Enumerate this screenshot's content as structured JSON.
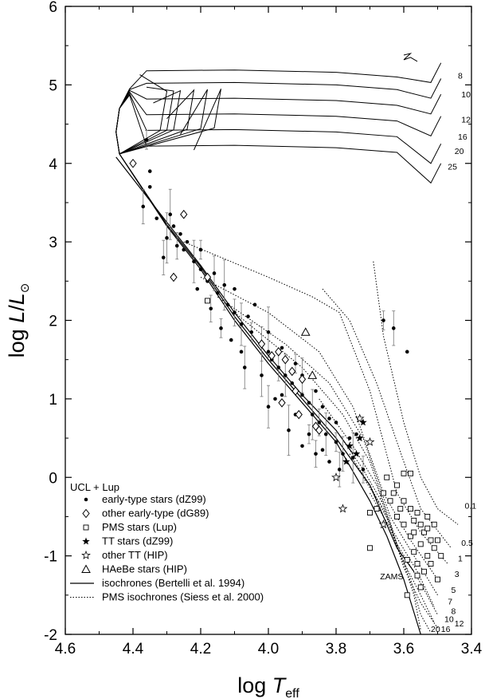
{
  "chart_data": {
    "type": "scatter",
    "x_axis": {
      "title_main": "log ",
      "title_italic": "T",
      "title_sub": "eff",
      "range": [
        4.6,
        3.4
      ],
      "reversed": true,
      "ticks": [
        "4.6",
        "4.4",
        "4.2",
        "4.0",
        "3.8",
        "3.6",
        "3.4"
      ],
      "tick_values": [
        4.6,
        4.4,
        4.2,
        4.0,
        3.8,
        3.6,
        3.4
      ]
    },
    "y_axis": {
      "title_main": "log ",
      "title_italic": "L",
      "title_rest": "/",
      "title_italic2": "L",
      "title_symbol": "⊙",
      "range": [
        -2,
        6
      ],
      "ticks": [
        "-2",
        "-1",
        "0",
        "1",
        "2",
        "3",
        "4",
        "5",
        "6"
      ],
      "tick_values": [
        -2,
        -1,
        0,
        1,
        2,
        3,
        4,
        5,
        6
      ]
    },
    "grid": false,
    "legend": {
      "position": "bottom-left",
      "title": "UCL + Lup",
      "entries": [
        {
          "label": "early-type stars (dZ99)",
          "marker": "filled-circle"
        },
        {
          "label": "other early-type (dG89)",
          "marker": "open-diamond"
        },
        {
          "label": "PMS stars (Lup)",
          "marker": "open-square"
        },
        {
          "label": "TT stars (dZ99)",
          "marker": "filled-star"
        },
        {
          "label": "other TT (HIP)",
          "marker": "open-star"
        },
        {
          "label": "HAeBe stars (HIP)",
          "marker": "open-triangle"
        },
        {
          "label": "isochrones (Bertelli et al. 1994)",
          "marker": "solid-line"
        },
        {
          "label": "PMS isochrones (Siess et al. 2000)",
          "marker": "dotted-line"
        }
      ]
    },
    "annotations": [
      "ZAMS"
    ],
    "post_ms_track_labels": [
      {
        "label": "8",
        "x": 3.44,
        "y": 5.08
      },
      {
        "label": "10",
        "x": 3.43,
        "y": 4.84
      },
      {
        "label": "12",
        "x": 3.43,
        "y": 4.52
      },
      {
        "label": "16",
        "x": 3.44,
        "y": 4.3
      },
      {
        "label": "20",
        "x": 3.45,
        "y": 4.12
      },
      {
        "label": "25",
        "x": 3.47,
        "y": 3.92
      }
    ],
    "pms_isochrone_labels": [
      {
        "label": "0.1",
        "x": 3.42,
        "y": -0.4
      },
      {
        "label": "0.5",
        "x": 3.43,
        "y": -0.87
      },
      {
        "label": "1",
        "x": 3.44,
        "y": -1.07
      },
      {
        "label": "3",
        "x": 3.45,
        "y": -1.27
      },
      {
        "label": "5",
        "x": 3.46,
        "y": -1.47
      },
      {
        "label": "7",
        "x": 3.47,
        "y": -1.62
      },
      {
        "label": "8",
        "x": 3.46,
        "y": -1.74
      },
      {
        "label": "10",
        "x": 3.48,
        "y": -1.84
      },
      {
        "label": "12",
        "x": 3.45,
        "y": -1.9
      },
      {
        "label": "16",
        "x": 3.49,
        "y": -1.97
      },
      {
        "label": "20",
        "x": 3.52,
        "y": -1.97
      }
    ],
    "zams_label": {
      "label": "ZAMS",
      "x": 3.67,
      "y": -1.3
    },
    "isochrones_solid": [
      [
        [
          4.44,
          4.12
        ],
        [
          4.3,
          3.2
        ],
        [
          4.2,
          2.65
        ],
        [
          4.1,
          2.0
        ],
        [
          4.0,
          1.45
        ],
        [
          3.9,
          0.95
        ],
        [
          3.8,
          0.45
        ],
        [
          3.7,
          -0.3
        ],
        [
          3.65,
          -0.75
        ],
        [
          3.6,
          -1.3
        ],
        [
          3.55,
          -2.0
        ]
      ],
      [
        [
          4.44,
          4.12
        ],
        [
          4.3,
          3.22
        ],
        [
          4.2,
          2.68
        ],
        [
          4.1,
          2.05
        ],
        [
          4.0,
          1.5
        ],
        [
          3.9,
          1.0
        ],
        [
          3.8,
          0.5
        ],
        [
          3.7,
          -0.1
        ],
        [
          3.62,
          -0.9
        ],
        [
          3.57,
          -1.2
        ]
      ],
      [
        [
          4.45,
          4.08
        ],
        [
          4.3,
          3.25
        ],
        [
          4.2,
          2.7
        ],
        [
          4.1,
          2.1
        ],
        [
          4.0,
          1.55
        ],
        [
          3.9,
          1.05
        ],
        [
          3.8,
          0.6
        ],
        [
          3.75,
          0.3
        ]
      ]
    ],
    "post_ms_tracks": [
      {
        "mass": "8",
        "y_blue": 5.18,
        "y_red": 5.28,
        "x_hook": 4.3
      },
      {
        "mass": "10",
        "y_blue": 5.02,
        "y_red": 5.08,
        "x_hook": 4.28
      },
      {
        "mass": "12",
        "y_blue": 4.82,
        "y_red": 4.88,
        "x_hook": 4.26
      },
      {
        "mass": "16",
        "y_blue": 4.62,
        "y_red": 4.6,
        "x_hook": 4.22
      },
      {
        "mass": "20",
        "y_blue": 4.42,
        "y_red": 4.25,
        "x_hook": 4.18
      },
      {
        "mass": "25",
        "y_blue": 4.22,
        "y_red": 4.0,
        "x_hook": 4.14
      }
    ],
    "pms_isochrones_dotted": [
      {
        "age": "0.1",
        "points": [
          [
            3.69,
            2.75
          ],
          [
            3.66,
            1.8
          ],
          [
            3.6,
            0.7
          ],
          [
            3.55,
            0.0
          ],
          [
            3.5,
            -0.4
          ],
          [
            3.44,
            -0.6
          ]
        ]
      },
      {
        "age": "0.5",
        "points": [
          [
            3.84,
            2.4
          ],
          [
            3.76,
            2.0
          ],
          [
            3.68,
            1.2
          ],
          [
            3.6,
            0.2
          ],
          [
            3.55,
            -0.4
          ],
          [
            3.46,
            -0.9
          ]
        ]
      },
      {
        "age": "1",
        "points": [
          [
            4.25,
            3.0
          ],
          [
            4.0,
            2.55
          ],
          [
            3.87,
            2.3
          ],
          [
            3.79,
            2.1
          ],
          [
            3.7,
            1.1
          ],
          [
            3.62,
            -0.2
          ],
          [
            3.55,
            -0.7
          ],
          [
            3.47,
            -1.1
          ]
        ]
      },
      {
        "age": "3",
        "points": [
          [
            4.2,
            2.55
          ],
          [
            4.0,
            2.1
          ],
          [
            3.85,
            1.6
          ],
          [
            3.75,
            0.9
          ],
          [
            3.66,
            -0.2
          ],
          [
            3.58,
            -0.8
          ],
          [
            3.5,
            -1.3
          ]
        ]
      },
      {
        "age": "5",
        "points": [
          [
            4.15,
            2.3
          ],
          [
            3.95,
            1.7
          ],
          [
            3.82,
            1.2
          ],
          [
            3.72,
            0.5
          ],
          [
            3.64,
            -0.5
          ],
          [
            3.57,
            -1.0
          ],
          [
            3.5,
            -1.5
          ]
        ]
      },
      {
        "age": "7",
        "points": [
          [
            4.1,
            2.1
          ],
          [
            3.9,
            1.4
          ],
          [
            3.78,
            0.8
          ],
          [
            3.7,
            0.2
          ],
          [
            3.63,
            -0.7
          ],
          [
            3.56,
            -1.2
          ],
          [
            3.51,
            -1.65
          ]
        ]
      },
      {
        "age": "8",
        "points": [
          [
            3.85,
            1.0
          ],
          [
            3.75,
            0.4
          ],
          [
            3.68,
            -0.1
          ],
          [
            3.62,
            -0.85
          ],
          [
            3.55,
            -1.35
          ],
          [
            3.5,
            -1.75
          ]
        ]
      },
      {
        "age": "10",
        "points": [
          [
            3.8,
            0.6
          ],
          [
            3.72,
            0.1
          ],
          [
            3.66,
            -0.35
          ],
          [
            3.61,
            -1.0
          ],
          [
            3.55,
            -1.5
          ],
          [
            3.51,
            -1.85
          ]
        ]
      },
      {
        "age": "12",
        "points": [
          [
            3.76,
            0.3
          ],
          [
            3.7,
            -0.1
          ],
          [
            3.64,
            -0.6
          ],
          [
            3.6,
            -1.15
          ],
          [
            3.55,
            -1.6
          ],
          [
            3.5,
            -1.92
          ]
        ]
      },
      {
        "age": "16",
        "points": [
          [
            3.72,
            0.0
          ],
          [
            3.66,
            -0.4
          ],
          [
            3.62,
            -0.85
          ],
          [
            3.58,
            -1.3
          ],
          [
            3.55,
            -1.75
          ],
          [
            3.52,
            -1.98
          ]
        ]
      },
      {
        "age": "20",
        "points": [
          [
            3.7,
            -0.2
          ],
          [
            3.64,
            -0.65
          ],
          [
            3.6,
            -1.1
          ],
          [
            3.57,
            -1.5
          ],
          [
            3.55,
            -1.95
          ]
        ]
      }
    ],
    "series": [
      {
        "name": "early-type stars (dZ99)",
        "marker": "filled-circle",
        "points": [
          [
            4.36,
            4.3
          ],
          [
            4.35,
            3.9
          ],
          [
            4.37,
            3.45
          ],
          [
            4.33,
            3.3
          ],
          [
            4.3,
            3.05
          ],
          [
            4.28,
            3.2
          ],
          [
            4.27,
            2.95
          ],
          [
            4.25,
            2.9
          ],
          [
            4.22,
            2.75
          ],
          [
            4.2,
            2.65
          ],
          [
            4.2,
            2.9
          ],
          [
            4.18,
            2.5
          ],
          [
            4.16,
            2.6
          ],
          [
            4.15,
            2.35
          ],
          [
            4.13,
            2.45
          ],
          [
            4.12,
            2.2
          ],
          [
            4.1,
            2.1
          ],
          [
            4.1,
            2.4
          ],
          [
            4.08,
            1.95
          ],
          [
            4.06,
            2.05
          ],
          [
            4.05,
            1.85
          ],
          [
            4.04,
            2.2
          ],
          [
            4.02,
            1.7
          ],
          [
            4.0,
            1.6
          ],
          [
            4.0,
            1.85
          ],
          [
            3.99,
            1.5
          ],
          [
            3.97,
            1.4
          ],
          [
            3.96,
            1.65
          ],
          [
            3.95,
            1.3
          ],
          [
            3.93,
            1.2
          ],
          [
            3.92,
            1.45
          ],
          [
            3.9,
            1.05
          ],
          [
            3.9,
            1.3
          ],
          [
            3.88,
            0.95
          ],
          [
            3.87,
            0.8
          ],
          [
            3.86,
            1.1
          ],
          [
            3.85,
            0.7
          ],
          [
            3.84,
            0.9
          ],
          [
            3.83,
            0.55
          ],
          [
            3.82,
            0.75
          ],
          [
            3.8,
            0.45
          ],
          [
            3.8,
            0.7
          ],
          [
            3.78,
            0.3
          ],
          [
            3.76,
            0.5
          ],
          [
            3.75,
            0.25
          ],
          [
            3.74,
            0.55
          ],
          [
            3.72,
            0.1
          ],
          [
            3.98,
            1.0
          ],
          [
            4.02,
            1.3
          ],
          [
            4.08,
            1.6
          ],
          [
            4.14,
            1.9
          ],
          [
            4.24,
            3.0
          ],
          [
            4.31,
            2.8
          ],
          [
            4.26,
            3.1
          ],
          [
            3.94,
            0.6
          ],
          [
            3.9,
            0.4
          ],
          [
            3.86,
            0.3
          ],
          [
            3.92,
            0.8
          ],
          [
            4.0,
            0.9
          ],
          [
            3.82,
            0.2
          ],
          [
            3.66,
            2.0
          ],
          [
            3.59,
            1.6
          ],
          [
            3.63,
            1.9
          ],
          [
            4.35,
            3.7
          ],
          [
            4.29,
            3.35
          ],
          [
            4.21,
            2.4
          ],
          [
            4.17,
            2.15
          ],
          [
            4.11,
            1.75
          ],
          [
            4.07,
            1.4
          ],
          [
            3.96,
            1.05
          ],
          [
            3.88,
            0.55
          ],
          [
            3.84,
            0.35
          ],
          [
            3.79,
            0.1
          ]
        ]
      },
      {
        "name": "other early-type (dG89)",
        "marker": "open-diamond",
        "points": [
          [
            4.4,
            4.0
          ],
          [
            4.25,
            3.35
          ],
          [
            4.28,
            2.55
          ],
          [
            4.18,
            2.55
          ],
          [
            4.02,
            1.7
          ],
          [
            3.99,
            1.55
          ],
          [
            3.97,
            1.6
          ],
          [
            3.95,
            1.5
          ],
          [
            3.93,
            1.35
          ],
          [
            3.92,
            1.1
          ],
          [
            3.96,
            0.95
          ],
          [
            3.91,
            0.8
          ],
          [
            3.86,
            0.65
          ],
          [
            3.85,
            0.6
          ],
          [
            3.9,
            1.25
          ]
        ]
      },
      {
        "name": "PMS stars (Lup)",
        "marker": "open-square",
        "points": [
          [
            4.18,
            2.25
          ],
          [
            3.58,
            0.05
          ],
          [
            3.59,
            -1.5
          ],
          [
            3.62,
            -0.1
          ],
          [
            3.63,
            -0.2
          ],
          [
            3.6,
            -0.3
          ],
          [
            3.58,
            -0.4
          ],
          [
            3.57,
            -0.55
          ],
          [
            3.56,
            -0.45
          ],
          [
            3.55,
            -0.6
          ],
          [
            3.54,
            -0.7
          ],
          [
            3.53,
            -0.65
          ],
          [
            3.52,
            -0.8
          ],
          [
            3.51,
            -0.9
          ],
          [
            3.55,
            -0.85
          ],
          [
            3.57,
            -0.95
          ],
          [
            3.6,
            -0.6
          ],
          [
            3.61,
            -0.4
          ],
          [
            3.64,
            -0.3
          ],
          [
            3.58,
            -0.75
          ],
          [
            3.53,
            -1.0
          ],
          [
            3.52,
            -1.1
          ],
          [
            3.54,
            -1.2
          ],
          [
            3.56,
            -1.25
          ],
          [
            3.55,
            -1.4
          ],
          [
            3.5,
            -1.3
          ],
          [
            3.49,
            -1.0
          ],
          [
            3.5,
            -0.8
          ],
          [
            3.57,
            -0.7
          ],
          [
            3.62,
            -0.5
          ],
          [
            3.66,
            -0.2
          ],
          [
            3.68,
            -0.4
          ],
          [
            3.7,
            -0.45
          ],
          [
            3.7,
            -0.9
          ],
          [
            3.65,
            0.0
          ],
          [
            3.6,
            0.05
          ],
          [
            3.53,
            -0.5
          ],
          [
            3.51,
            -0.6
          ],
          [
            3.59,
            -1.05
          ],
          [
            3.56,
            -1.1
          ]
        ]
      },
      {
        "name": "TT stars (dZ99)",
        "marker": "filled-star",
        "points": [
          [
            3.72,
            0.7
          ],
          [
            3.74,
            0.3
          ],
          [
            3.76,
            0.4
          ],
          [
            3.77,
            0.2
          ],
          [
            3.73,
            0.5
          ]
        ]
      },
      {
        "name": "other TT (HIP)",
        "marker": "open-star",
        "points": [
          [
            3.7,
            0.45
          ],
          [
            3.78,
            -0.4
          ],
          [
            3.8,
            0.0
          ],
          [
            3.73,
            0.75
          ],
          [
            3.66,
            -0.6
          ]
        ]
      },
      {
        "name": "HAeBe stars (HIP)",
        "marker": "open-triangle",
        "points": [
          [
            3.89,
            1.85
          ],
          [
            3.87,
            1.3
          ]
        ]
      }
    ]
  }
}
